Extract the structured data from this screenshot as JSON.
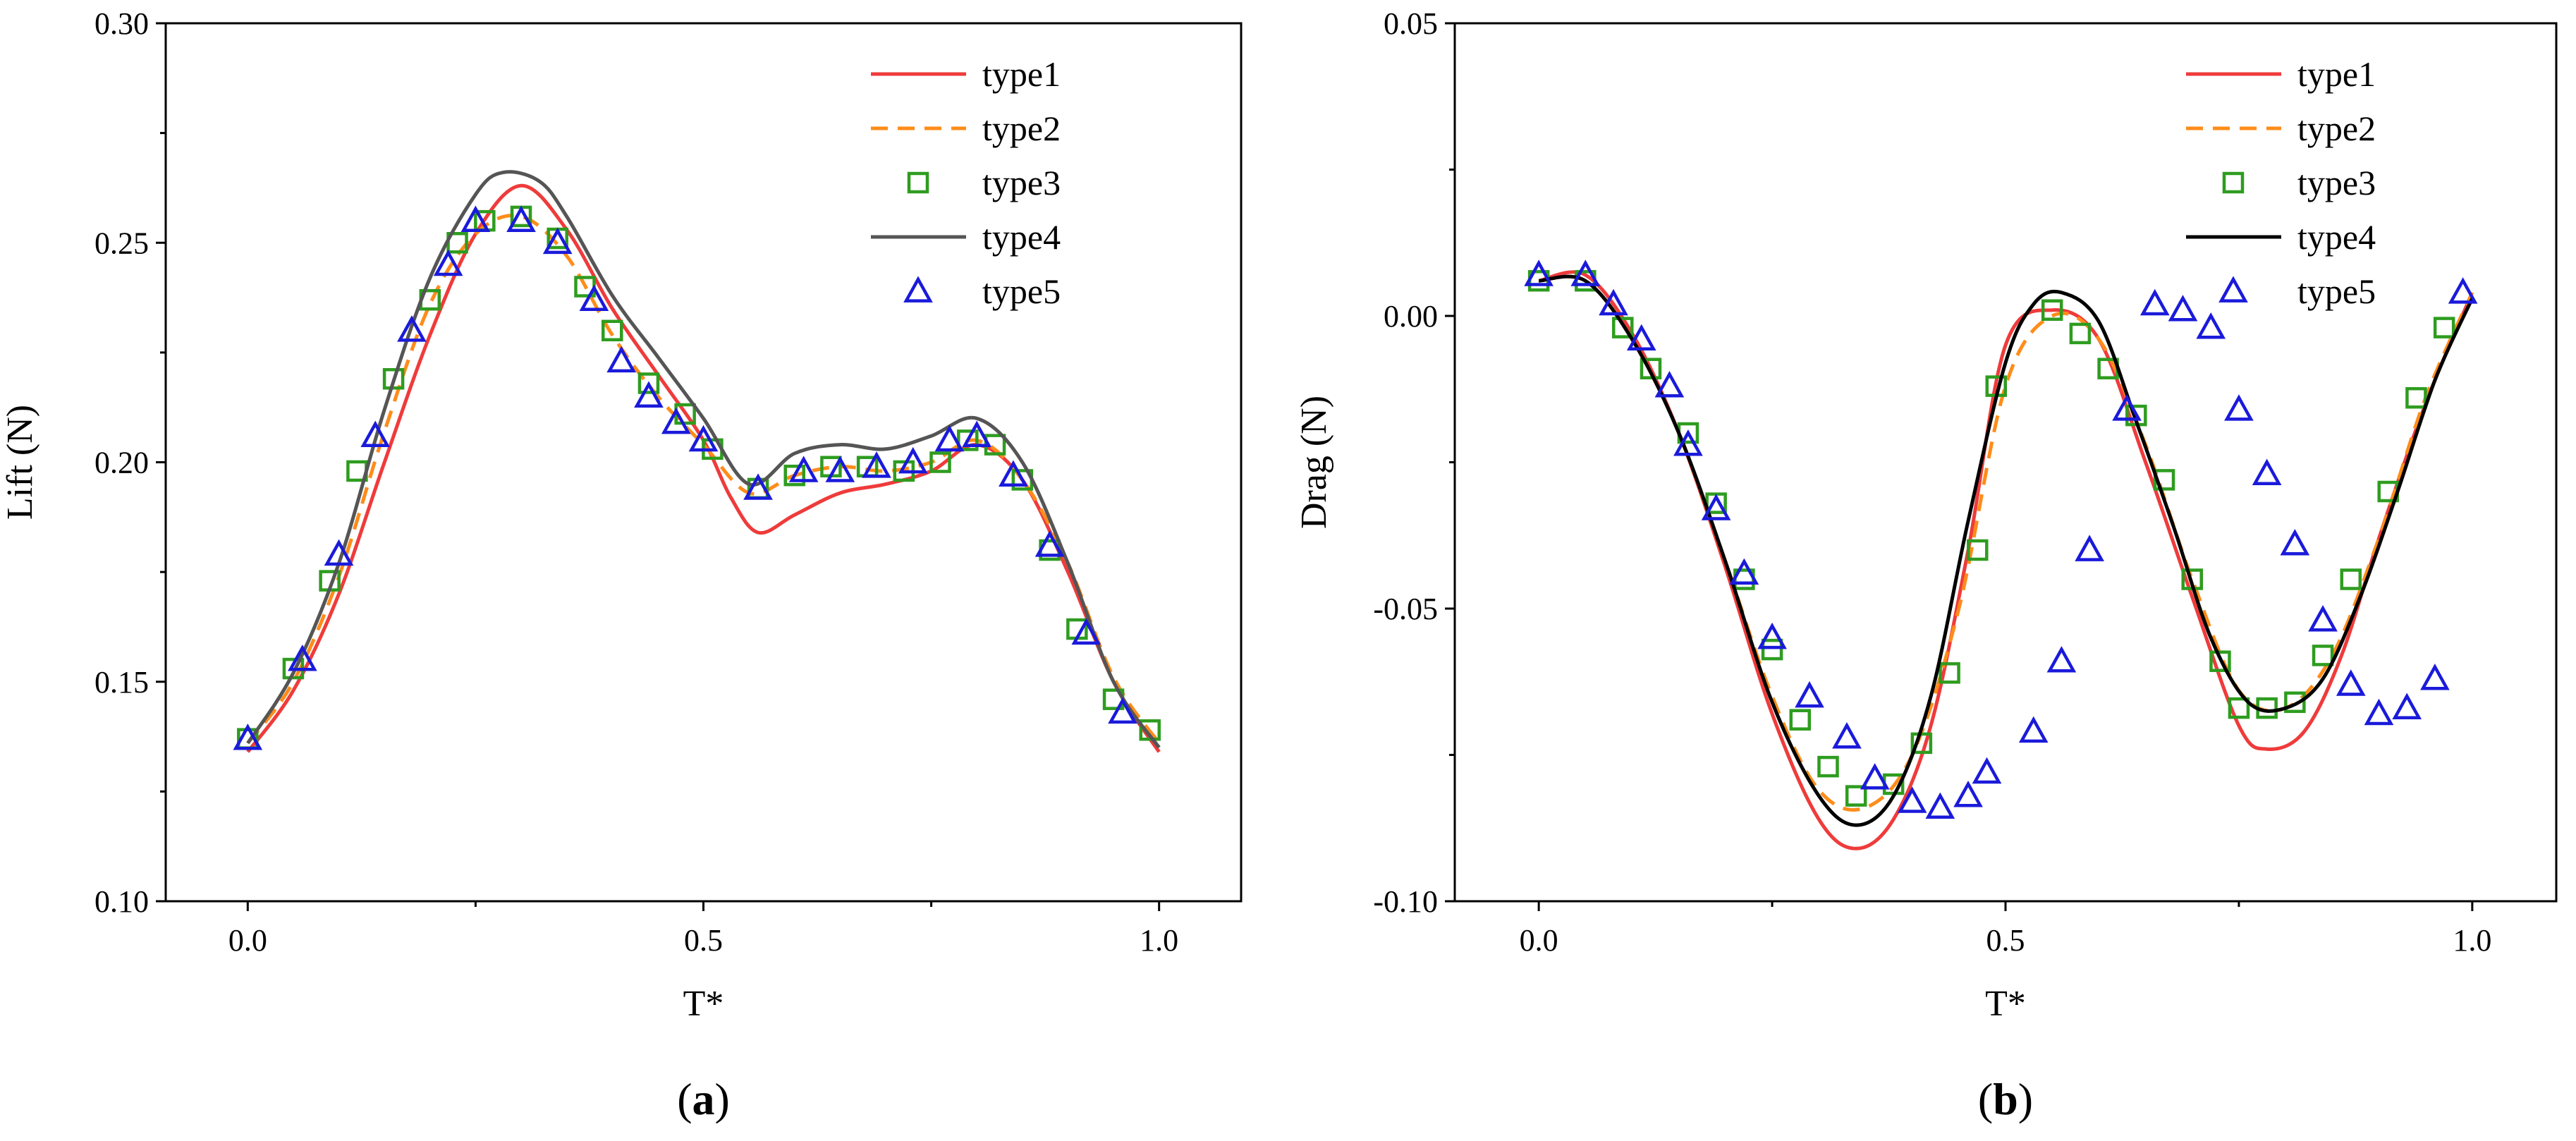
{
  "chart_data": [
    {
      "type": "line",
      "panel_label": "(a)",
      "panel_letter": "a",
      "xlabel": "T*",
      "ylabel": "Lift (N)",
      "xlim": [
        -0.09,
        1.09
      ],
      "ylim": [
        0.1,
        0.3
      ],
      "xticks": [
        0.0,
        0.5,
        1.0
      ],
      "xtick_labels": [
        "0.0",
        "0.5",
        "1.0"
      ],
      "yticks": [
        0.1,
        0.15,
        0.2,
        0.25,
        0.3
      ],
      "ytick_labels": [
        "0.10",
        "0.15",
        "0.20",
        "0.25",
        "0.30"
      ],
      "legend_position": "top-right",
      "series": [
        {
          "name": "type1",
          "label": "type1",
          "style": "solid",
          "color": "#ef3b3b",
          "x": [
            0.0,
            0.05,
            0.1,
            0.15,
            0.2,
            0.25,
            0.3,
            0.35,
            0.4,
            0.45,
            0.5,
            0.53,
            0.56,
            0.6,
            0.65,
            0.7,
            0.75,
            0.8,
            0.85,
            0.9,
            0.95,
            1.0
          ],
          "y": [
            0.134,
            0.148,
            0.17,
            0.2,
            0.229,
            0.252,
            0.263,
            0.253,
            0.235,
            0.22,
            0.205,
            0.192,
            0.184,
            0.188,
            0.193,
            0.195,
            0.198,
            0.204,
            0.196,
            0.175,
            0.15,
            0.134
          ]
        },
        {
          "name": "type2",
          "label": "type2",
          "style": "dashed",
          "color": "#ff8c1a",
          "x": [
            0.0,
            0.05,
            0.1,
            0.15,
            0.2,
            0.25,
            0.3,
            0.35,
            0.4,
            0.45,
            0.5,
            0.55,
            0.6,
            0.65,
            0.7,
            0.75,
            0.8,
            0.85,
            0.9,
            0.95,
            1.0
          ],
          "y": [
            0.136,
            0.15,
            0.174,
            0.207,
            0.236,
            0.252,
            0.256,
            0.247,
            0.229,
            0.215,
            0.204,
            0.193,
            0.197,
            0.199,
            0.198,
            0.2,
            0.205,
            0.196,
            0.177,
            0.151,
            0.136
          ]
        },
        {
          "name": "type3",
          "label": "type3",
          "style": "square-markers",
          "color": "#2e9c1f",
          "x": [
            0.0,
            0.05,
            0.09,
            0.12,
            0.16,
            0.2,
            0.23,
            0.26,
            0.3,
            0.34,
            0.37,
            0.4,
            0.44,
            0.48,
            0.51,
            0.56,
            0.6,
            0.64,
            0.68,
            0.72,
            0.76,
            0.79,
            0.82,
            0.85,
            0.88,
            0.91,
            0.95,
            0.99
          ],
          "y": [
            0.137,
            0.153,
            0.173,
            0.198,
            0.219,
            0.237,
            0.25,
            0.255,
            0.256,
            0.251,
            0.24,
            0.23,
            0.218,
            0.211,
            0.203,
            0.194,
            0.197,
            0.199,
            0.199,
            0.198,
            0.2,
            0.205,
            0.204,
            0.196,
            0.18,
            0.162,
            0.146,
            0.139
          ]
        },
        {
          "name": "type4",
          "label": "type4",
          "style": "solid",
          "color": "#555555",
          "x": [
            0.0,
            0.05,
            0.1,
            0.15,
            0.2,
            0.25,
            0.28,
            0.32,
            0.35,
            0.4,
            0.45,
            0.5,
            0.55,
            0.6,
            0.65,
            0.7,
            0.75,
            0.8,
            0.85,
            0.9,
            0.95,
            1.0
          ],
          "y": [
            0.136,
            0.152,
            0.177,
            0.212,
            0.242,
            0.261,
            0.266,
            0.264,
            0.256,
            0.238,
            0.224,
            0.21,
            0.195,
            0.202,
            0.204,
            0.203,
            0.206,
            0.21,
            0.2,
            0.177,
            0.15,
            0.135
          ]
        },
        {
          "name": "type5",
          "label": "type5",
          "style": "triangle-markers",
          "color": "#1a1adb",
          "x": [
            0.0,
            0.06,
            0.1,
            0.14,
            0.18,
            0.22,
            0.25,
            0.3,
            0.34,
            0.38,
            0.41,
            0.44,
            0.47,
            0.5,
            0.56,
            0.61,
            0.65,
            0.69,
            0.73,
            0.77,
            0.8,
            0.84,
            0.88,
            0.92,
            0.96
          ],
          "y": [
            0.137,
            0.155,
            0.179,
            0.206,
            0.23,
            0.245,
            0.255,
            0.255,
            0.25,
            0.237,
            0.223,
            0.215,
            0.209,
            0.205,
            0.194,
            0.198,
            0.198,
            0.199,
            0.2,
            0.205,
            0.206,
            0.197,
            0.181,
            0.161,
            0.143
          ]
        }
      ]
    },
    {
      "type": "line",
      "panel_label": "(b)",
      "panel_letter": "b",
      "xlabel": "T*",
      "ylabel": "Drag (N)",
      "xlim": [
        -0.09,
        1.09
      ],
      "ylim": [
        -0.1,
        0.05
      ],
      "xticks": [
        0.0,
        0.5,
        1.0
      ],
      "xtick_labels": [
        "0.0",
        "0.5",
        "1.0"
      ],
      "yticks": [
        -0.1,
        -0.05,
        0.0,
        0.05
      ],
      "ytick_labels": [
        "-0.10",
        "-0.05",
        "0.00",
        "0.05"
      ],
      "legend_position": "top-right",
      "series": [
        {
          "name": "type1",
          "label": "type1",
          "style": "solid",
          "color": "#ef3b3b",
          "x": [
            0.0,
            0.05,
            0.1,
            0.15,
            0.2,
            0.25,
            0.3,
            0.34,
            0.38,
            0.42,
            0.46,
            0.5,
            0.55,
            0.6,
            0.65,
            0.7,
            0.75,
            0.78,
            0.82,
            0.86,
            0.9,
            0.95,
            1.0
          ],
          "y": [
            0.006,
            0.007,
            -0.003,
            -0.02,
            -0.043,
            -0.068,
            -0.086,
            -0.091,
            -0.086,
            -0.07,
            -0.04,
            -0.005,
            0.001,
            -0.004,
            -0.025,
            -0.048,
            -0.07,
            -0.074,
            -0.071,
            -0.058,
            -0.038,
            -0.015,
            0.004
          ]
        },
        {
          "name": "type2",
          "label": "type2",
          "style": "dashed",
          "color": "#ff8c1a",
          "x": [
            0.0,
            0.05,
            0.1,
            0.15,
            0.2,
            0.25,
            0.3,
            0.35,
            0.4,
            0.45,
            0.5,
            0.55,
            0.6,
            0.65,
            0.7,
            0.75,
            0.8,
            0.85,
            0.9,
            0.95,
            1.0
          ],
          "y": [
            0.006,
            0.006,
            -0.004,
            -0.02,
            -0.042,
            -0.065,
            -0.081,
            -0.084,
            -0.075,
            -0.05,
            -0.012,
            0.0,
            -0.004,
            -0.022,
            -0.045,
            -0.064,
            -0.067,
            -0.058,
            -0.038,
            -0.014,
            0.004
          ]
        },
        {
          "name": "type3",
          "label": "type3",
          "style": "square-markers",
          "color": "#2e9c1f",
          "x": [
            0.0,
            0.05,
            0.09,
            0.12,
            0.16,
            0.19,
            0.22,
            0.25,
            0.28,
            0.31,
            0.34,
            0.38,
            0.41,
            0.44,
            0.47,
            0.49,
            0.55,
            0.58,
            0.61,
            0.64,
            0.67,
            0.7,
            0.73,
            0.75,
            0.78,
            0.81,
            0.84,
            0.87,
            0.91,
            0.94,
            0.97
          ],
          "y": [
            0.006,
            0.006,
            -0.002,
            -0.009,
            -0.02,
            -0.032,
            -0.045,
            -0.057,
            -0.069,
            -0.077,
            -0.082,
            -0.08,
            -0.073,
            -0.061,
            -0.04,
            -0.012,
            0.001,
            -0.003,
            -0.009,
            -0.017,
            -0.028,
            -0.045,
            -0.059,
            -0.067,
            -0.067,
            -0.066,
            -0.058,
            -0.045,
            -0.03,
            -0.014,
            -0.002
          ]
        },
        {
          "name": "type4",
          "label": "type4",
          "style": "solid",
          "color": "#000000",
          "x": [
            0.0,
            0.05,
            0.1,
            0.15,
            0.2,
            0.25,
            0.3,
            0.34,
            0.38,
            0.42,
            0.46,
            0.5,
            0.53,
            0.56,
            0.6,
            0.64,
            0.68,
            0.72,
            0.76,
            0.8,
            0.84,
            0.88,
            0.92,
            0.96,
            1.0
          ],
          "y": [
            0.006,
            0.006,
            -0.004,
            -0.02,
            -0.042,
            -0.066,
            -0.082,
            -0.087,
            -0.082,
            -0.065,
            -0.035,
            -0.008,
            0.002,
            0.004,
            -0.001,
            -0.018,
            -0.036,
            -0.055,
            -0.066,
            -0.067,
            -0.062,
            -0.048,
            -0.03,
            -0.011,
            0.003
          ]
        },
        {
          "name": "type5",
          "label": "type5",
          "style": "triangle-markers",
          "color": "#1a1adb",
          "x": [
            0.0,
            0.05,
            0.08,
            0.11,
            0.14,
            0.16,
            0.19,
            0.22,
            0.25,
            0.29,
            0.33,
            0.36,
            0.4,
            0.43,
            0.46,
            0.48,
            0.53,
            0.56,
            0.59,
            0.63,
            0.66,
            0.69,
            0.72,
            0.75,
            0.78,
            0.81,
            0.84,
            0.87,
            0.9,
            0.93,
            0.96,
            0.99
          ],
          "y": [
            0.007,
            0.007,
            0.002,
            -0.004,
            -0.012,
            -0.022,
            -0.033,
            -0.044,
            -0.055,
            -0.065,
            -0.072,
            -0.079,
            -0.083,
            -0.084,
            -0.082,
            -0.078,
            -0.071,
            -0.059,
            -0.04,
            -0.016,
            0.002,
            0.001,
            -0.002,
            -0.016,
            -0.027,
            -0.039,
            -0.052,
            -0.063,
            -0.068,
            -0.067,
            -0.062,
            0.004
          ]
        }
      ]
    }
  ]
}
